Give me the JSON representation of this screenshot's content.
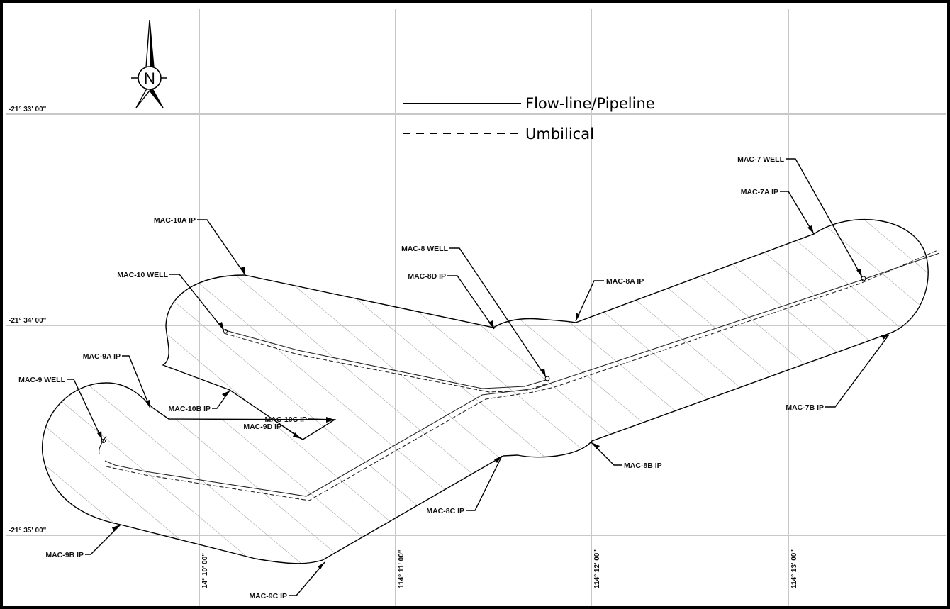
{
  "compass": {
    "letter": "N"
  },
  "legend": {
    "flowline_label": "Flow-line/Pipeline",
    "umbilical_label": "Umbilical"
  },
  "latitudes": [
    "-21° 33' 00\"",
    "-21° 34' 00\"",
    "-21° 35' 00\""
  ],
  "longitudes": [
    "14° 10' 00\"",
    "114° 11' 00\"",
    "114° 12' 00\"",
    "114° 13' 00\""
  ],
  "labels": {
    "mac7_well": "MAC-7 WELL",
    "mac7a_ip": "MAC-7A IP",
    "mac7b_ip": "MAC-7B IP",
    "mac8_well": "MAC-8 WELL",
    "mac8a_ip": "MAC-8A IP",
    "mac8b_ip": "MAC-8B IP",
    "mac8c_ip": "MAC-8C IP",
    "mac8d_ip": "MAC-8D IP",
    "mac9_well": "MAC-9 WELL",
    "mac9a_ip": "MAC-9A IP",
    "mac9b_ip": "MAC-9B IP",
    "mac9c_ip": "MAC-9C IP",
    "mac9d_ip": "MAC-9D IP",
    "mac10_well": "MAC-10 WELL",
    "mac10a_ip": "MAC-10A IP",
    "mac10b_ip": "MAC-10B IP",
    "mac10c_ip": "MAC-10C IP"
  }
}
